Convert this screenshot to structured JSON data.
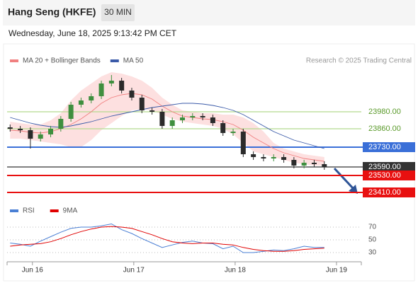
{
  "header": {
    "title": "Hang Seng (HKFE)",
    "interval": "30 MIN",
    "datetime": "Wednesday, June 18, 2025 9:13:42 PM CET"
  },
  "chart_data": [
    {
      "type": "candlestick",
      "credit": "Research © 2025 Trading Central",
      "x": [
        -0.22,
        -0.12,
        -0.02,
        0.08,
        0.18,
        0.28,
        0.38,
        0.48,
        0.58,
        0.68,
        0.78,
        0.88,
        0.98,
        1.08,
        1.18,
        1.28,
        1.38,
        1.48,
        1.58,
        1.68,
        1.78,
        1.88,
        1.98,
        2.08,
        2.18,
        2.28,
        2.38,
        2.48,
        2.58,
        2.68,
        2.78,
        2.88
      ],
      "open": [
        23870,
        23860,
        23850,
        23790,
        23820,
        23860,
        23930,
        24030,
        24060,
        24090,
        24180,
        24200,
        24130,
        24080,
        23990,
        23980,
        23880,
        23920,
        23940,
        23950,
        23940,
        23900,
        23830,
        23840,
        23680,
        23660,
        23650,
        23660,
        23640,
        23600,
        23620,
        23610
      ],
      "close": [
        23860,
        23850,
        23790,
        23820,
        23860,
        23930,
        24030,
        24060,
        24090,
        24180,
        24200,
        24130,
        24080,
        23990,
        23980,
        23880,
        23920,
        23940,
        23950,
        23940,
        23900,
        23830,
        23840,
        23680,
        23660,
        23650,
        23660,
        23640,
        23600,
        23620,
        23610,
        23590
      ],
      "high": [
        23890,
        23880,
        23870,
        23840,
        23880,
        23950,
        24050,
        24080,
        24110,
        24200,
        24240,
        24220,
        24150,
        24100,
        24010,
        24000,
        23940,
        23960,
        23970,
        23970,
        23960,
        23920,
        23860,
        23860,
        23700,
        23680,
        23680,
        23680,
        23660,
        23640,
        23640,
        23630
      ],
      "low": [
        23840,
        23830,
        23720,
        23770,
        23800,
        23840,
        23910,
        24010,
        24040,
        24070,
        24160,
        24110,
        24060,
        23970,
        23960,
        23860,
        23860,
        23900,
        23920,
        23920,
        23880,
        23810,
        23810,
        23660,
        23640,
        23630,
        23630,
        23620,
        23580,
        23580,
        23590,
        23570
      ],
      "up_color": "#3f8f3f",
      "down_color": "#2b2b2b",
      "series": [
        {
          "name": "MA 20 + Bollinger Bands",
          "color": "#f08080",
          "band_color": "#fde0e0",
          "values": [
            23850,
            23845,
            23835,
            23830,
            23840,
            23860,
            23890,
            23930,
            23980,
            24040,
            24080,
            24100,
            24110,
            24100,
            24070,
            24020,
            23980,
            23950,
            23940,
            23930,
            23925,
            23910,
            23890,
            23850,
            23800,
            23760,
            23720,
            23690,
            23670,
            23650,
            23640,
            23630
          ],
          "upper": [
            23910,
            23900,
            23890,
            23890,
            23920,
            23970,
            24060,
            24130,
            24180,
            24230,
            24260,
            24250,
            24230,
            24200,
            24150,
            24080,
            24030,
            23990,
            23980,
            23970,
            23970,
            23960,
            23960,
            23940,
            23900,
            23840,
            23760,
            23720,
            23700,
            23680,
            23670,
            23660
          ],
          "lower": [
            23790,
            23790,
            23780,
            23770,
            23760,
            23750,
            23730,
            23730,
            23780,
            23850,
            23900,
            23950,
            23990,
            24000,
            23990,
            23960,
            23930,
            23910,
            23900,
            23890,
            23880,
            23860,
            23820,
            23760,
            23700,
            23680,
            23660,
            23640,
            23620,
            23610,
            23600,
            23600
          ]
        },
        {
          "name": "MA 50",
          "color": "#3a5aa8",
          "values": [
            23940,
            23920,
            23900,
            23885,
            23875,
            23870,
            23880,
            23895,
            23910,
            23930,
            23950,
            23965,
            23980,
            23995,
            24010,
            24020,
            24030,
            24040,
            24040,
            24035,
            24025,
            24010,
            23990,
            23960,
            23920,
            23880,
            23840,
            23810,
            23780,
            23760,
            23740,
            23720
          ]
        }
      ],
      "levels": [
        {
          "value": 23980,
          "label": "23980.00",
          "color": "#b5d98f",
          "style": "text"
        },
        {
          "value": 23860,
          "label": "23860.00",
          "color": "#b5d98f",
          "style": "text"
        },
        {
          "value": 23730,
          "label": "23730.00",
          "color": "#3a6fd8",
          "style": "box"
        },
        {
          "value": 23590,
          "label": "23590.00",
          "color": "#333333",
          "style": "box"
        },
        {
          "value": 23530,
          "label": "23530.00",
          "color": "#e81010",
          "style": "box"
        },
        {
          "value": 23410,
          "label": "23410.00",
          "color": "#e81010",
          "style": "box"
        }
      ],
      "ylim": [
        23345,
        24295
      ]
    },
    {
      "type": "line",
      "series": [
        {
          "name": "RSI",
          "color": "#4a7fd4",
          "values": [
            45,
            43,
            40,
            48,
            55,
            62,
            68,
            70,
            70,
            72,
            75,
            66,
            60,
            52,
            45,
            38,
            42,
            46,
            48,
            45,
            44,
            36,
            40,
            30,
            30,
            32,
            34,
            33,
            36,
            40,
            38,
            38
          ]
        },
        {
          "name": "9MA",
          "color": "#e00000",
          "values": [
            40,
            42,
            43,
            44,
            47,
            52,
            58,
            63,
            67,
            70,
            71,
            70,
            68,
            63,
            58,
            52,
            47,
            45,
            44,
            45,
            45,
            43,
            42,
            38,
            35,
            33,
            32,
            32,
            33,
            35,
            36,
            37
          ]
        }
      ],
      "ylim": [
        20,
        90
      ],
      "yticks": [
        70,
        50,
        30
      ],
      "xlim": [
        -0.25,
        3.245
      ],
      "xticks": [
        {
          "value": 0,
          "label": "Jun 16"
        },
        {
          "value": 1,
          "label": "Jun 17"
        },
        {
          "value": 2,
          "label": "Jun 18"
        },
        {
          "value": 3,
          "label": "Jun 19"
        }
      ]
    }
  ]
}
